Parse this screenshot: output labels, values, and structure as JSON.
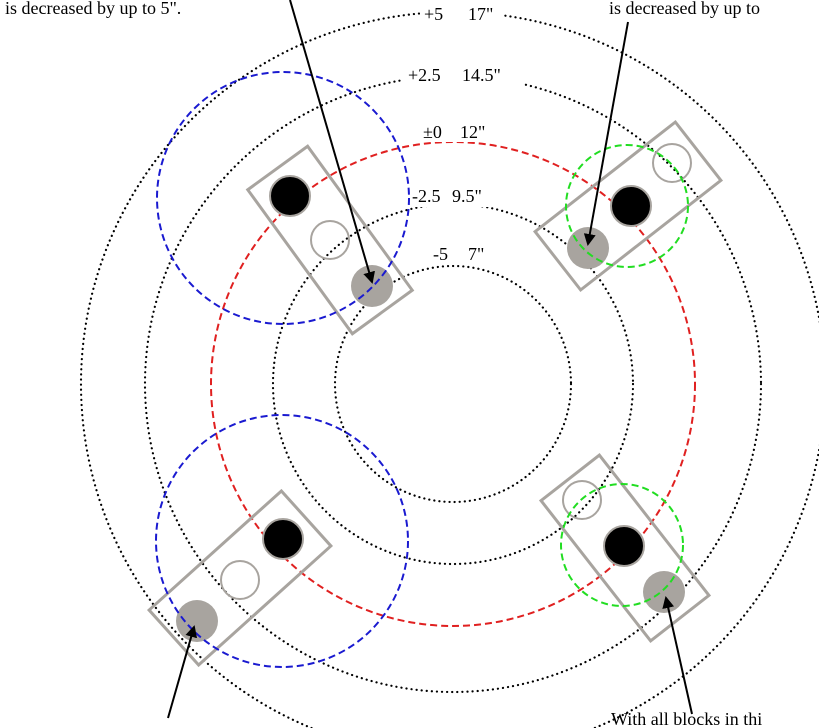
{
  "captions": {
    "top_left": "is decreased by up to 5\".",
    "top_right": "is decreased by up to",
    "bottom_left": "",
    "bottom_right": "With all blocks in thi"
  },
  "rings": [
    {
      "offset": "+5",
      "size": "17\"",
      "color": "#000000",
      "style": "dotted"
    },
    {
      "offset": "+2.5",
      "size": "14.5\"",
      "color": "#000000",
      "style": "dotted"
    },
    {
      "offset": "±0",
      "size": "12\"",
      "color": "#e02020",
      "style": "dashed"
    },
    {
      "offset": "-2.5",
      "size": "9.5\"",
      "color": "#000000",
      "style": "dotted"
    },
    {
      "offset": "-5",
      "size": "7\"",
      "color": "#000000",
      "style": "dotted"
    }
  ],
  "colors": {
    "block_outline": "#a8a49f",
    "hole_filled": "#000000",
    "hole_gray": "#a8a49f",
    "hole_empty": "#a8a49f",
    "left_circle": "#1a1ad0",
    "right_circle": "#22dd22",
    "arrow": "#000000"
  }
}
